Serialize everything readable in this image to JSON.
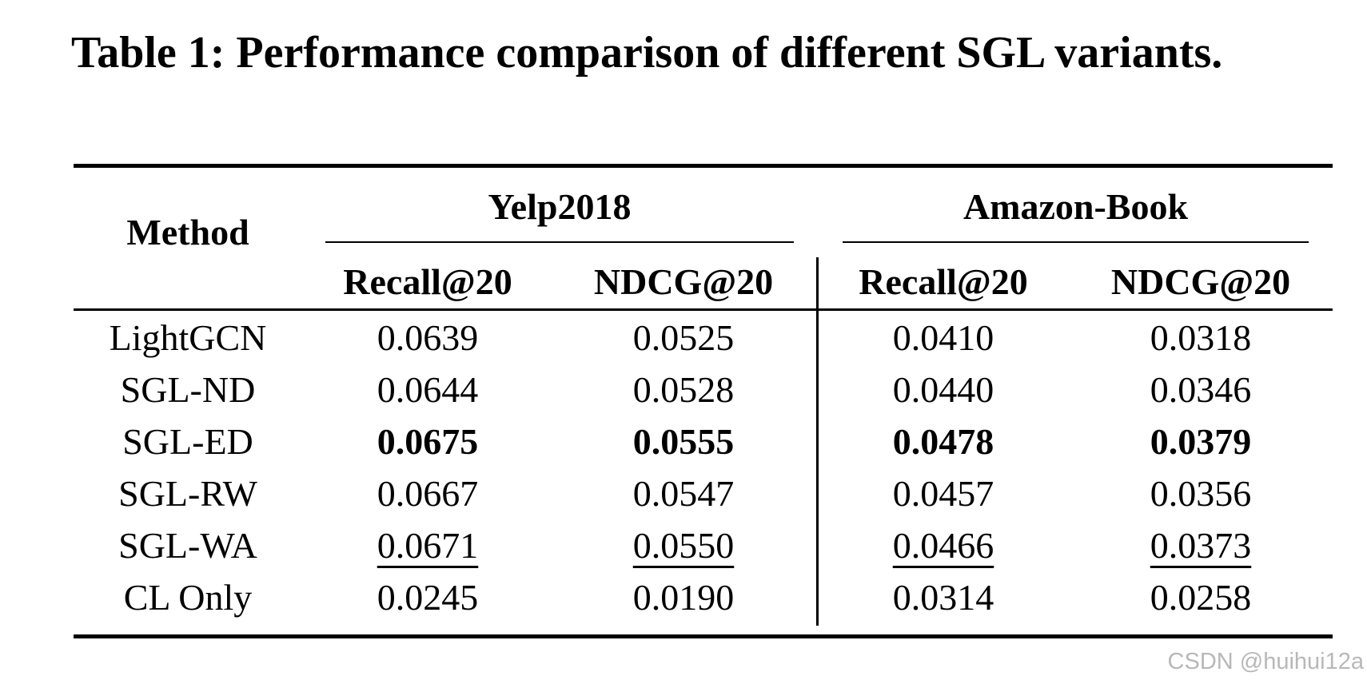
{
  "caption": "Table 1: Performance comparison of different SGL variants.",
  "table": {
    "method_header": "Method",
    "groups": [
      {
        "name": "Yelp2018",
        "metrics": [
          "Recall@20",
          "NDCG@20"
        ]
      },
      {
        "name": "Amazon-Book",
        "metrics": [
          "Recall@20",
          "NDCG@20"
        ]
      }
    ],
    "rows": [
      {
        "method": "LightGCN",
        "values": [
          "0.0639",
          "0.0525",
          "0.0410",
          "0.0318"
        ],
        "style": "normal"
      },
      {
        "method": "SGL-ND",
        "values": [
          "0.0644",
          "0.0528",
          "0.0440",
          "0.0346"
        ],
        "style": "normal"
      },
      {
        "method": "SGL-ED",
        "values": [
          "0.0675",
          "0.0555",
          "0.0478",
          "0.0379"
        ],
        "style": "bold"
      },
      {
        "method": "SGL-RW",
        "values": [
          "0.0667",
          "0.0547",
          "0.0457",
          "0.0356"
        ],
        "style": "normal"
      },
      {
        "method": "SGL-WA",
        "values": [
          "0.0671",
          "0.0550",
          "0.0466",
          "0.0373"
        ],
        "style": "underline"
      },
      {
        "method": "CL Only",
        "values": [
          "0.0245",
          "0.0190",
          "0.0314",
          "0.0258"
        ],
        "style": "normal"
      }
    ]
  },
  "watermark": "CSDN @huihui12a"
}
